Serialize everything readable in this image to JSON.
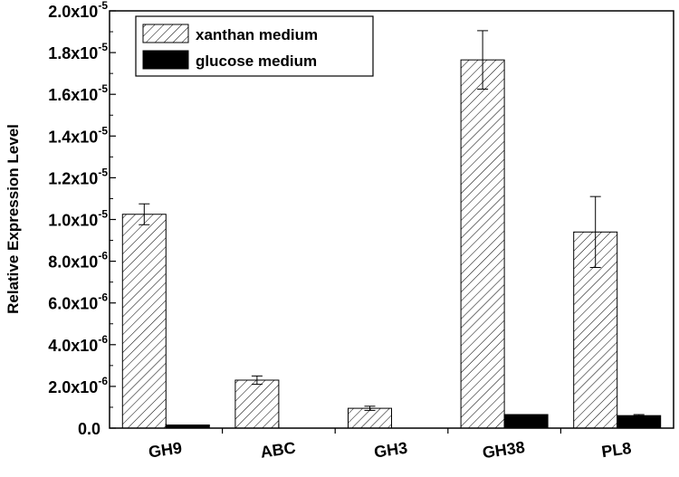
{
  "chart_data": {
    "type": "bar",
    "ylabel": "Relative Expression Level",
    "xlabel": "",
    "title": "",
    "ylim": [
      0,
      2e-05
    ],
    "categories": [
      "GH9",
      "ABC",
      "GH3",
      "GH38",
      "PL8"
    ],
    "series": [
      {
        "name": "xanthan medium",
        "values": [
          1.025e-05,
          2.3e-06,
          9.5e-07,
          1.765e-05,
          9.4e-06
        ],
        "errors": [
          5e-07,
          2e-07,
          1e-07,
          1.4e-06,
          1.7e-06
        ],
        "pattern": "hatched",
        "color": "#000000"
      },
      {
        "name": "glucose medium",
        "values": [
          1.5e-07,
          0,
          0,
          6.5e-07,
          6e-07
        ],
        "errors": [
          0,
          0,
          0,
          0,
          5e-08
        ],
        "pattern": "solid",
        "color": "#000000"
      }
    ],
    "yticks": [
      {
        "value": 0,
        "mant": "0.0",
        "exp": ""
      },
      {
        "value": 2e-06,
        "mant": "2.0x10",
        "exp": "-6"
      },
      {
        "value": 4e-06,
        "mant": "4.0x10",
        "exp": "-6"
      },
      {
        "value": 6e-06,
        "mant": "6.0x10",
        "exp": "-6"
      },
      {
        "value": 8e-06,
        "mant": "8.0x10",
        "exp": "-6"
      },
      {
        "value": 1e-05,
        "mant": "1.0x10",
        "exp": "-5"
      },
      {
        "value": 1.2e-05,
        "mant": "1.2x10",
        "exp": "-5"
      },
      {
        "value": 1.4e-05,
        "mant": "1.4x10",
        "exp": "-5"
      },
      {
        "value": 1.6e-05,
        "mant": "1.6x10",
        "exp": "-5"
      },
      {
        "value": 1.8e-05,
        "mant": "1.8x10",
        "exp": "-5"
      },
      {
        "value": 2e-05,
        "mant": "2.0x10",
        "exp": "-5"
      }
    ],
    "grid": false,
    "legend_position": "top-left"
  }
}
